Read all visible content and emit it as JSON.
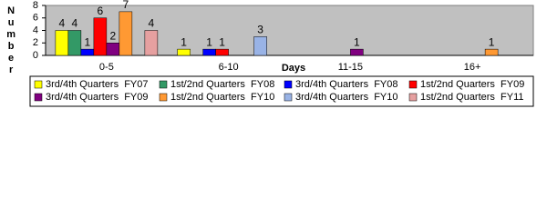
{
  "chart_data": {
    "type": "bar",
    "y_label": "Number",
    "x_label": "Days",
    "categories": [
      "0-5",
      "6-10",
      "11-15",
      "16+"
    ],
    "series": [
      {
        "name": "3rd/4th Quarters  FY07",
        "color": "#ffff00",
        "values": [
          4,
          1,
          null,
          null
        ]
      },
      {
        "name": "1st/2nd Quarters  FY08",
        "color": "#339966",
        "values": [
          4,
          null,
          null,
          null
        ]
      },
      {
        "name": "3rd/4th Quarters  FY08",
        "color": "#0000ff",
        "values": [
          1,
          1,
          null,
          null
        ]
      },
      {
        "name": "1st/2nd Quarters  FY09",
        "color": "#ff0000",
        "values": [
          6,
          1,
          null,
          null
        ]
      },
      {
        "name": "3rd/4th Quarters  FY09",
        "color": "#800080",
        "values": [
          2,
          null,
          1,
          null
        ]
      },
      {
        "name": "1st/2nd Quarters  FY10",
        "color": "#ff9933",
        "values": [
          7,
          null,
          null,
          1
        ]
      },
      {
        "name": "3rd/4th Quarters  FY10",
        "color": "#99b3e6",
        "values": [
          null,
          3,
          null,
          null
        ]
      },
      {
        "name": "1st/2nd Quarters  FY11",
        "color": "#e6a0a0",
        "values": [
          4,
          null,
          null,
          null
        ]
      }
    ],
    "ylim": [
      0,
      8
    ],
    "yticks": [
      0,
      2,
      4,
      6,
      8
    ],
    "plot_background": "#c0c0c0"
  }
}
